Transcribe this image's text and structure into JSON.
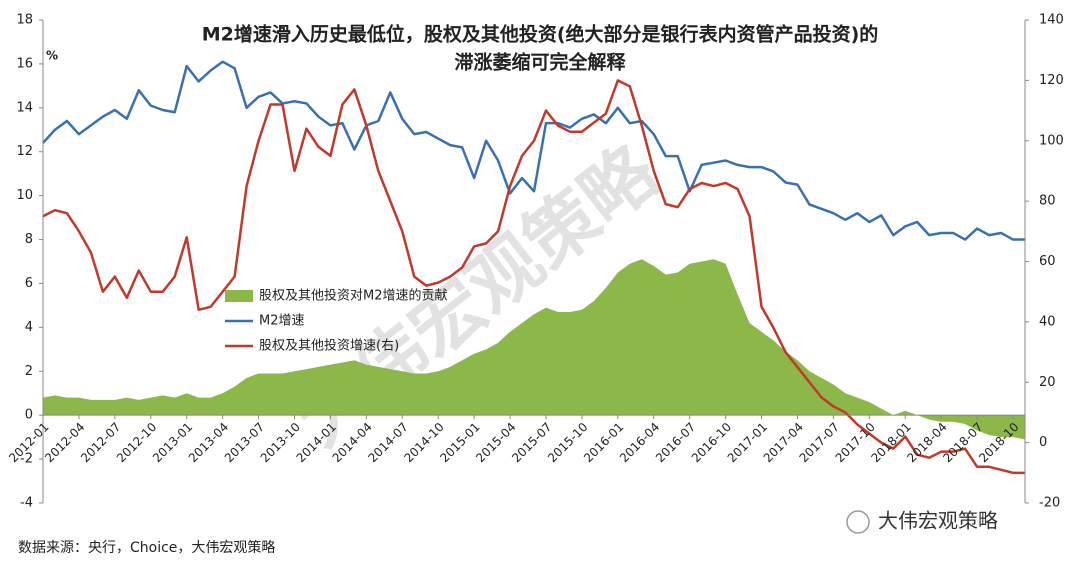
{
  "chart_data": {
    "type": "line",
    "title": [
      "M2增速滑入历史最低位，股权及其他投资(绝大部分是银行表内资管产品投资)的",
      "滞涨萎缩可完全解释"
    ],
    "y_unit": "%",
    "source": "数据来源：央行，Choice，大伟宏观策略",
    "watermark": "大伟宏观策略",
    "logo_text": "大伟宏观策略",
    "categories": [
      "2012-01",
      null,
      null,
      "2012-04",
      null,
      null,
      "2012-07",
      null,
      null,
      "2012-10",
      null,
      null,
      "2013-01",
      null,
      null,
      "2013-04",
      null,
      null,
      "2013-07",
      null,
      null,
      "2013-10",
      null,
      null,
      "2014-01",
      null,
      null,
      "2014-04",
      null,
      null,
      "2014-07",
      null,
      null,
      "2014-10",
      null,
      null,
      "2015-01",
      null,
      null,
      "2015-04",
      null,
      null,
      "2015-07",
      null,
      null,
      "2015-10",
      null,
      null,
      "2016-01",
      null,
      null,
      "2016-04",
      null,
      null,
      "2016-07",
      null,
      null,
      "2016-10",
      null,
      null,
      "2017-01",
      null,
      null,
      "2017-04",
      null,
      null,
      "2017-07",
      null,
      null,
      "2017-10",
      null,
      null,
      "2018-01",
      null,
      null,
      "2018-04",
      null,
      null,
      "2018-07",
      null,
      null,
      "2018-10",
      null
    ],
    "ylim": [
      -4,
      18
    ],
    "yticks": [
      -4,
      -2,
      0,
      2,
      4,
      6,
      8,
      10,
      12,
      14,
      16,
      18
    ],
    "y2lim": [
      -20,
      140
    ],
    "y2ticks": [
      -20,
      0,
      20,
      40,
      60,
      80,
      100,
      120,
      140
    ],
    "grid": false,
    "series": [
      {
        "name": "股权及其他投资对M2增速的贡献",
        "type": "area",
        "color": "#8cb84a",
        "axis": "y",
        "values": [
          0.8,
          0.9,
          0.8,
          0.8,
          0.7,
          0.7,
          0.7,
          0.8,
          0.7,
          0.8,
          0.9,
          0.8,
          1.0,
          0.8,
          0.8,
          1.0,
          1.3,
          1.7,
          1.9,
          1.9,
          1.9,
          2.0,
          2.1,
          2.2,
          2.3,
          2.4,
          2.5,
          2.3,
          2.2,
          2.1,
          2.0,
          1.9,
          1.9,
          2.0,
          2.2,
          2.5,
          2.8,
          3.0,
          3.3,
          3.8,
          4.2,
          4.6,
          4.9,
          4.7,
          4.7,
          4.8,
          5.2,
          5.8,
          6.5,
          6.9,
          7.1,
          6.8,
          6.4,
          6.5,
          6.9,
          7.0,
          7.1,
          6.9,
          5.5,
          4.2,
          3.8,
          3.4,
          2.9,
          2.5,
          2.0,
          1.7,
          1.4,
          1.0,
          0.8,
          0.6,
          0.3,
          0.0,
          0.2,
          0.0,
          -0.2,
          -0.3,
          -0.3,
          -0.4,
          -0.7,
          -0.9,
          -1.0,
          -1.0,
          -1.1
        ]
      },
      {
        "name": "M2增速",
        "type": "line",
        "color": "#3a70b0",
        "axis": "y",
        "values": [
          12.4,
          13.0,
          13.4,
          12.8,
          13.2,
          13.6,
          13.9,
          13.5,
          14.8,
          14.1,
          13.9,
          13.8,
          15.9,
          15.2,
          15.7,
          16.1,
          15.8,
          14.0,
          14.5,
          14.7,
          14.2,
          14.3,
          14.2,
          13.6,
          13.2,
          13.3,
          12.1,
          13.2,
          13.4,
          14.7,
          13.5,
          12.8,
          12.9,
          12.6,
          12.3,
          12.2,
          10.8,
          12.5,
          11.6,
          10.1,
          10.8,
          10.2,
          13.3,
          13.3,
          13.1,
          13.5,
          13.7,
          13.3,
          14.0,
          13.3,
          13.4,
          12.8,
          11.8,
          11.8,
          10.2,
          11.4,
          11.5,
          11.6,
          11.4,
          11.3,
          11.3,
          11.1,
          10.6,
          10.5,
          9.6,
          9.4,
          9.2,
          8.9,
          9.2,
          8.8,
          9.1,
          8.2,
          8.6,
          8.8,
          8.2,
          8.3,
          8.3,
          8.0,
          8.5,
          8.2,
          8.3,
          8.0,
          8.0
        ]
      },
      {
        "name": "股权及其他投资增速(右)",
        "type": "line",
        "color": "#c0392b",
        "axis": "y2",
        "values": [
          75,
          77,
          76,
          70,
          63,
          50,
          55,
          48,
          57,
          50,
          50,
          55,
          68,
          44,
          45,
          50,
          55,
          85,
          100,
          112,
          112,
          90,
          104,
          98,
          95,
          112,
          117,
          105,
          90,
          80,
          70,
          55,
          52,
          53,
          55,
          58,
          65,
          66,
          70,
          85,
          95,
          100,
          110,
          105,
          103,
          103,
          106,
          109,
          120,
          118,
          105,
          90,
          79,
          78,
          84,
          86,
          85,
          86,
          84,
          75,
          45,
          38,
          30,
          25,
          20,
          15,
          12,
          10,
          6,
          3,
          0,
          -2,
          2,
          -4,
          -5,
          -3,
          -3,
          -2,
          -8,
          -8,
          -9,
          -10,
          -10
        ]
      }
    ]
  }
}
